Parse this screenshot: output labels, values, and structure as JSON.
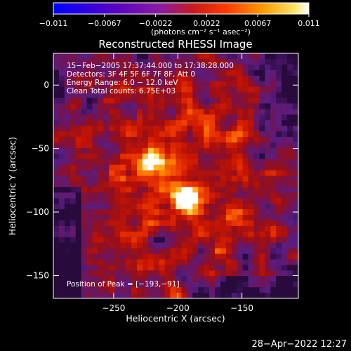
{
  "colorbar": {
    "ticks": [
      "−0.011",
      "−0.0067",
      "−0.0022",
      "0.0022",
      "0.0067",
      "0.011"
    ],
    "unit_label": "(photons cm⁻² s⁻¹ asec⁻²)",
    "colors": [
      "#0000ff",
      "#6a00c0",
      "#9a1aa0",
      "#c81a30",
      "#ff3c00",
      "#ff8c00",
      "#ffd040",
      "#ffffff"
    ]
  },
  "plot": {
    "title": "Reconstructed RHESSI Image",
    "info_lines": [
      "15−Feb−2005 17:37:44.000 to 17:38:28.000",
      "Detectors: 3F 4F 5F 6F 7F 8F, Att 0",
      "Energy Range: 6.0 − 12.0 keV",
      "Clean    Total counts: 6.75E+03"
    ],
    "peak_text": "Position of Peak = [−193,−91]",
    "xlabel": "Heliocentric X (arcsec)",
    "ylabel": "Heliocentric Y (arcsec)",
    "xticks": [
      "−250",
      "−200",
      "−150"
    ],
    "yticks": [
      "0",
      "−50",
      "−100",
      "−150"
    ],
    "xtick_values": [
      -250,
      -200,
      -150
    ],
    "ytick_values": [
      0,
      -50,
      -100,
      -150
    ],
    "xlim": [
      -297,
      -106
    ],
    "ylim": [
      -168,
      25
    ],
    "peaks": [
      {
        "x": -222,
        "y": -59,
        "strength": 0.75
      },
      {
        "x": -193,
        "y": -91,
        "strength": 1.0
      }
    ]
  },
  "footer": {
    "date": "28−Apr−2022 12:27"
  }
}
